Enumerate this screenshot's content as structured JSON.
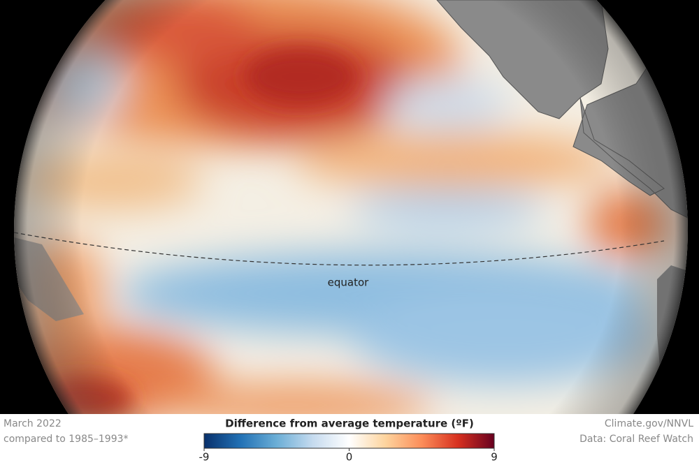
{
  "map": {
    "label": "equator"
  },
  "footer": {
    "date": "March 2022",
    "baseline": "compared to 1985–1993*",
    "credit": "Climate.gov/NNVL",
    "source": "Data: Coral Reef Watch"
  },
  "legend": {
    "title": "Difference from average temperature (ºF)",
    "range": [
      -9,
      9
    ],
    "ticks": [
      -9,
      0,
      9
    ],
    "colors": [
      "#08306b",
      "#2171b5",
      "#6baed6",
      "#c6dbef",
      "#ffffff",
      "#fdd49e",
      "#fc8d59",
      "#d7301f",
      "#67001f"
    ]
  }
}
